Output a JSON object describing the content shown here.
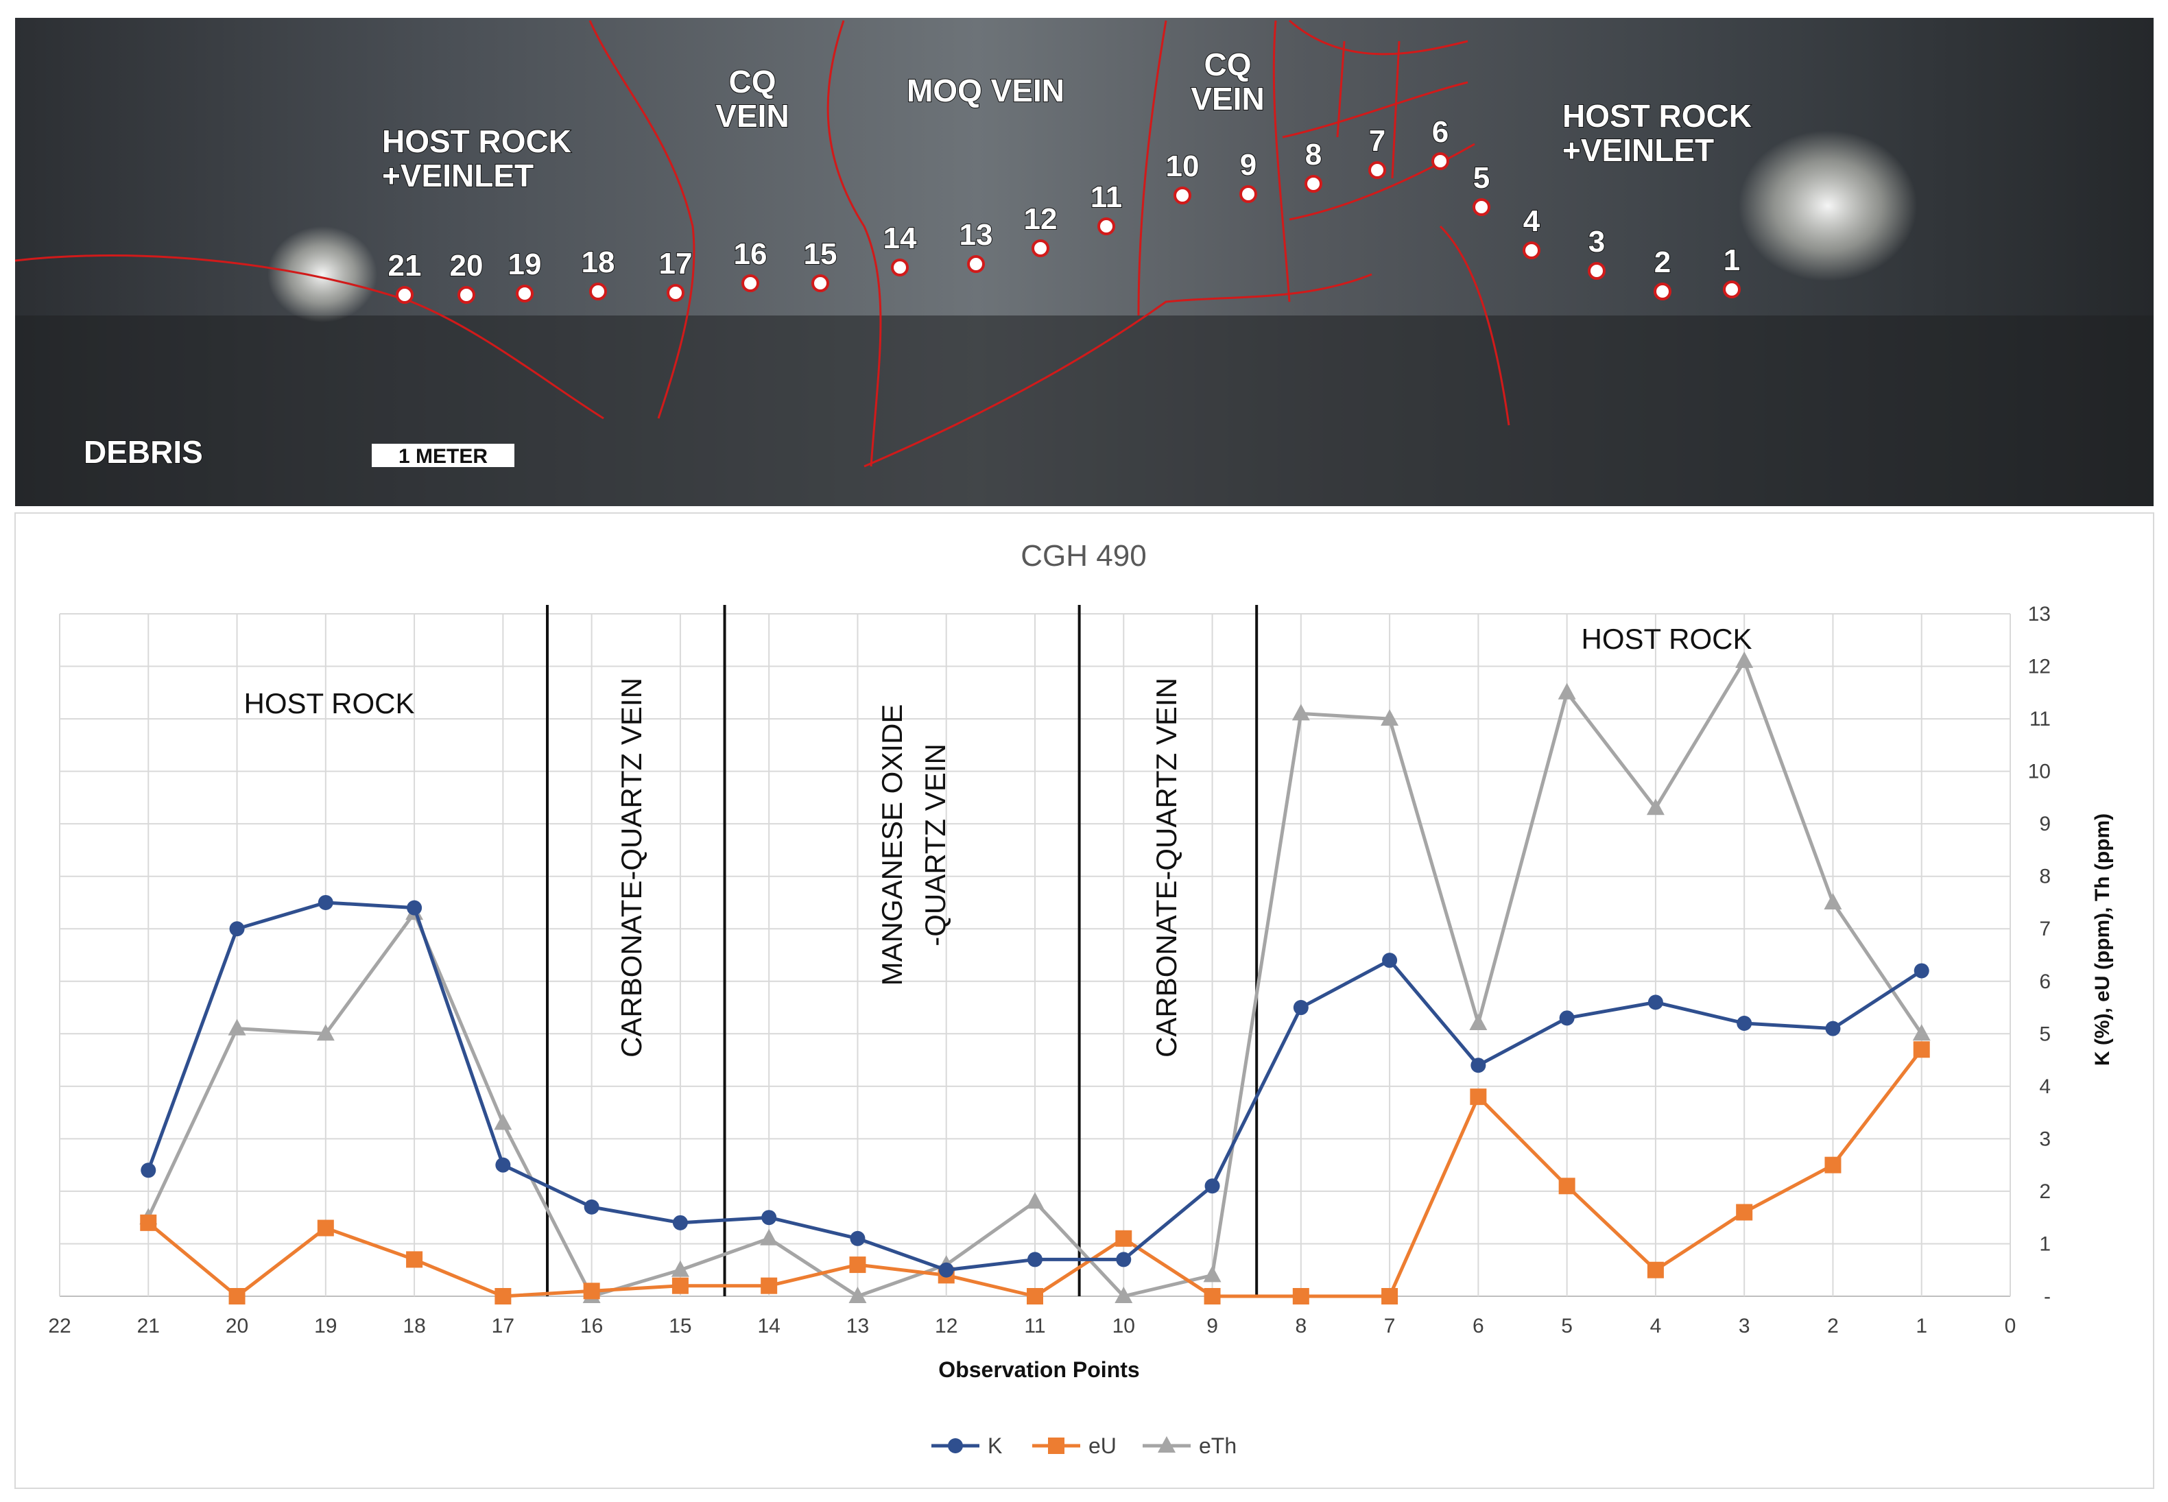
{
  "photo": {
    "labels": {
      "host_rock_veinlet_left_1": "HOST ROCK",
      "host_rock_veinlet_left_2": "+VEINLET",
      "cq_vein_left_1": "CQ",
      "cq_vein_left_2": "VEIN",
      "moq_vein": "MOQ VEIN",
      "cq_vein_right_1": "CQ",
      "cq_vein_right_2": "VEIN",
      "host_rock_veinlet_right_1": "HOST ROCK",
      "host_rock_veinlet_right_2": "+VEINLET",
      "debris": "DEBRIS",
      "scale_bar": "1 METER"
    },
    "points": [
      "21",
      "20",
      "19",
      "18",
      "17",
      "16",
      "15",
      "14",
      "13",
      "12",
      "11",
      "10",
      "9",
      "8",
      "7",
      "6",
      "5",
      "4",
      "3",
      "2",
      "1"
    ]
  },
  "chart_data": {
    "type": "line",
    "title": "CGH 490",
    "xlabel": "Observation Points",
    "ylabel": "K (%), eU (ppm), Th (ppm)",
    "x_reversed": true,
    "xlim": [
      22,
      0
    ],
    "ylim": [
      0,
      13
    ],
    "x_ticks": [
      "22",
      "21",
      "20",
      "19",
      "18",
      "17",
      "16",
      "15",
      "14",
      "13",
      "12",
      "11",
      "10",
      "9",
      "8",
      "7",
      "6",
      "5",
      "4",
      "3",
      "2",
      "1",
      "0"
    ],
    "y_ticks": [
      "-",
      "1",
      "2",
      "3",
      "4",
      "5",
      "6",
      "7",
      "8",
      "9",
      "10",
      "11",
      "12",
      "13"
    ],
    "grid": true,
    "legend_position": "bottom",
    "x": [
      21,
      20,
      19,
      18,
      17,
      16,
      15,
      14,
      13,
      12,
      11,
      10,
      9,
      8,
      7,
      6,
      5,
      4,
      3,
      2,
      1
    ],
    "series": [
      {
        "name": "K",
        "color": "#2f4f8f",
        "marker": "circle",
        "values": [
          2.4,
          7.0,
          7.5,
          7.4,
          2.5,
          1.7,
          1.4,
          1.5,
          1.1,
          0.5,
          0.7,
          0.7,
          2.1,
          5.5,
          6.4,
          4.4,
          5.3,
          5.6,
          5.2,
          5.1,
          6.2
        ]
      },
      {
        "name": "eU",
        "color": "#ed7d31",
        "marker": "square",
        "values": [
          1.4,
          0.0,
          1.3,
          0.7,
          0.0,
          0.1,
          0.2,
          0.2,
          0.6,
          0.4,
          0.0,
          1.1,
          0.0,
          0.0,
          0.0,
          3.8,
          2.1,
          0.5,
          1.6,
          2.5,
          4.7
        ]
      },
      {
        "name": "eTh",
        "color": "#a5a5a5",
        "marker": "triangle",
        "values": [
          1.5,
          5.1,
          5.0,
          7.3,
          3.3,
          0.0,
          0.5,
          1.1,
          0.0,
          0.6,
          1.8,
          0.0,
          0.4,
          11.1,
          11.0,
          5.2,
          11.5,
          9.3,
          12.1,
          7.5,
          5.0
        ]
      }
    ],
    "boundaries": [
      16.5,
      14.5,
      10.5,
      8.5
    ],
    "zones": {
      "host_rock_left": "HOST ROCK",
      "cq_left": "CARBONATE-QUARTZ VEIN",
      "mn_line1": "MANGANESE OXIDE",
      "mn_line2": "-QUARTZ VEIN",
      "cq_right": "CARBONATE-QUARTZ VEIN",
      "host_rock_right": "HOST ROCK"
    }
  }
}
